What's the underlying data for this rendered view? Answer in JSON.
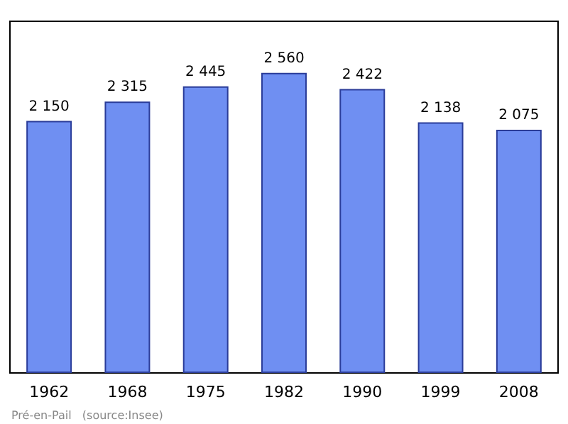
{
  "chart_data": {
    "type": "bar",
    "categories": [
      "1962",
      "1968",
      "1975",
      "1982",
      "1990",
      "1999",
      "2008"
    ],
    "values": [
      2150,
      2315,
      2445,
      2560,
      2422,
      2138,
      2075
    ],
    "color": "#6f8ff2",
    "data_labels": true,
    "value_labels": [
      "2 150",
      "2 315",
      "2 445",
      "2 560",
      "2 422",
      "2 138",
      "2 075"
    ],
    "annotations": [
      "Pré-en-Pail   (source:Insee)"
    ]
  }
}
